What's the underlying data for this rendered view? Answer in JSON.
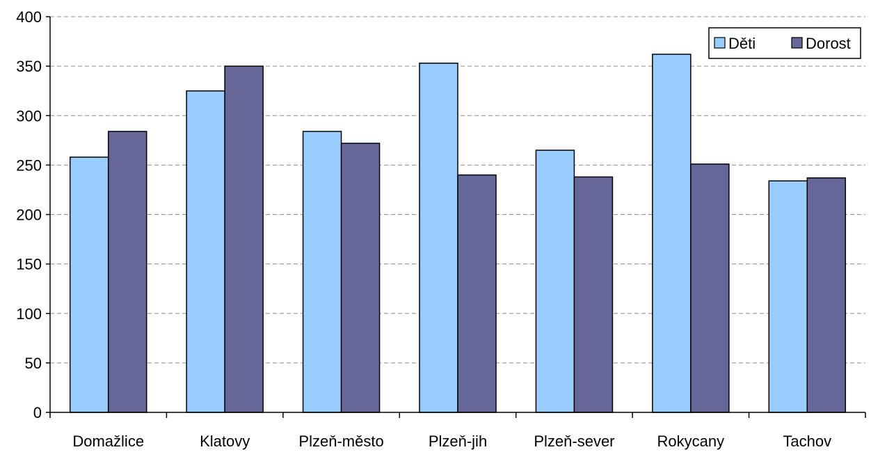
{
  "chart_data": {
    "type": "bar",
    "categories": [
      "Domažlice",
      "Klatovy",
      "Plzeň-město",
      "Plzeň-jih",
      "Plzeň-sever",
      "Rokycany",
      "Tachov"
    ],
    "series": [
      {
        "name": "Děti",
        "values": [
          258,
          325,
          284,
          353,
          265,
          362,
          234
        ],
        "color": "#99ccff"
      },
      {
        "name": "Dorost",
        "values": [
          284,
          350,
          272,
          240,
          238,
          251,
          237
        ],
        "color": "#666699"
      }
    ],
    "title": "",
    "xlabel": "",
    "ylabel": "",
    "ylim": [
      0,
      400
    ],
    "yticks": [
      "0",
      "50",
      "100",
      "150",
      "200",
      "250",
      "300",
      "350",
      "400"
    ],
    "grid": true,
    "legend_position": "top-right"
  }
}
